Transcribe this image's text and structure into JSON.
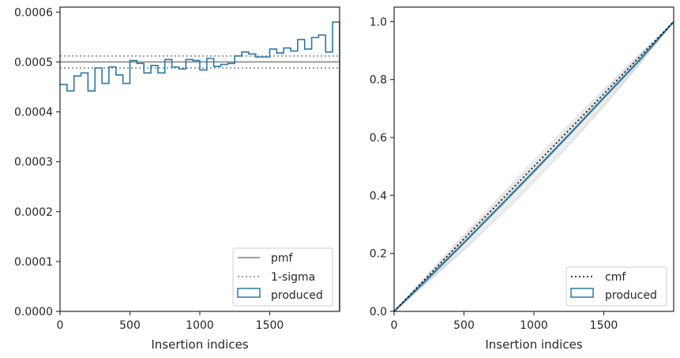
{
  "colors": {
    "produced": "#2878a8",
    "pmf": "#808080",
    "sigma": "#808080",
    "cmf": "#000000",
    "posterior_draws": "#d9d9d9"
  },
  "chart_data": [
    {
      "type": "histogram",
      "xlabel": "Insertion indices",
      "ylabel": "",
      "xlim": [
        0,
        2000
      ],
      "ylim": [
        0,
        0.00061
      ],
      "xticks": [
        0,
        500,
        1000,
        1500
      ],
      "yticks": [
        0.0,
        0.0001,
        0.0002,
        0.0003,
        0.0004,
        0.0005,
        0.0006
      ],
      "ytick_labels": [
        "0.0000",
        "0.0001",
        "0.0002",
        "0.0003",
        "0.0004",
        "0.0005",
        "0.0006"
      ],
      "pmf": 0.0005,
      "sigma_band": [
        0.000488,
        0.000512
      ],
      "bin_width": 50,
      "produced_values": [
        0.000455,
        0.000442,
        0.000472,
        0.000478,
        0.000442,
        0.000488,
        0.000457,
        0.00049,
        0.000474,
        0.000457,
        0.000503,
        0.000497,
        0.000478,
        0.000493,
        0.000478,
        0.000505,
        0.00049,
        0.000486,
        0.000505,
        0.000503,
        0.000484,
        0.000507,
        0.000491,
        0.000495,
        0.000497,
        0.000512,
        0.00052,
        0.000516,
        0.00051,
        0.00051,
        0.000526,
        0.000518,
        0.000528,
        0.000522,
        0.000545,
        0.000526,
        0.000549,
        0.000554,
        0.00052,
        0.00058
      ],
      "legend": {
        "placement": "lower right",
        "entries": [
          {
            "label": "pmf",
            "style": "solid-line"
          },
          {
            "label": "1-sigma",
            "style": "dotted-line"
          },
          {
            "label": "produced",
            "style": "box"
          }
        ]
      }
    },
    {
      "type": "line",
      "xlabel": "Insertion indices",
      "ylabel": "",
      "xlim": [
        0,
        2000
      ],
      "ylim": [
        0,
        1.05
      ],
      "xticks": [
        0,
        500,
        1000,
        1500
      ],
      "yticks": [
        0.0,
        0.2,
        0.4,
        0.6,
        0.8,
        1.0
      ],
      "ytick_labels": [
        "0.0",
        "0.2",
        "0.4",
        "0.6",
        "0.8",
        "1.0"
      ],
      "cmf": {
        "x": [
          0,
          2000
        ],
        "y": [
          0,
          1
        ]
      },
      "produced_cdf": {
        "x": [
          0,
          250,
          500,
          750,
          1000,
          1250,
          1500,
          1750,
          2000
        ],
        "y": [
          0,
          0.117,
          0.237,
          0.359,
          0.483,
          0.609,
          0.737,
          0.864,
          1.0
        ]
      },
      "draw_deviation_shape": [
        0,
        0.38,
        0.7,
        0.9,
        1.0,
        0.95,
        0.78,
        0.47,
        0
      ],
      "draw_deviation_amplitudes": [
        -0.04,
        -0.055,
        -0.03,
        -0.022,
        -0.015,
        -0.008,
        -0.002,
        0.006,
        0.012,
        0.02,
        -0.048,
        -0.012
      ],
      "legend": {
        "placement": "lower right",
        "entries": [
          {
            "label": "cmf",
            "style": "dotted-line"
          },
          {
            "label": "produced",
            "style": "box"
          }
        ]
      }
    }
  ]
}
